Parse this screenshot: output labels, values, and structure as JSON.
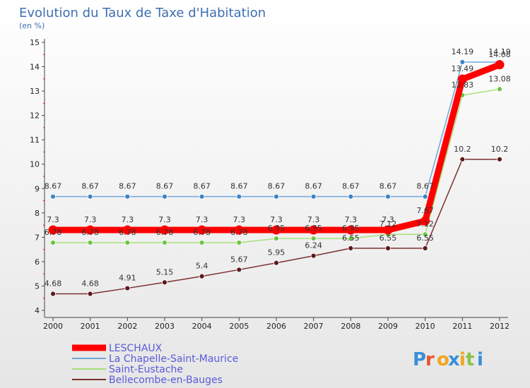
{
  "chart_data": {
    "type": "line",
    "title": "Evolution du Taux de Taxe d'Habitation",
    "subtitle": "(en %)",
    "x": [
      "2000",
      "2001",
      "2002",
      "2003",
      "2004",
      "2005",
      "2006",
      "2007",
      "2008",
      "2009",
      "2010",
      "2011",
      "2012"
    ],
    "ylim": [
      4,
      15
    ],
    "yticks": [
      4,
      5,
      6,
      7,
      8,
      9,
      10,
      11,
      12,
      13,
      14,
      15
    ],
    "grid": false,
    "legend_position": "bottom-left",
    "series": [
      {
        "name": "LESCHAUX",
        "color": "#ff0000",
        "values": [
          7.3,
          7.3,
          7.3,
          7.3,
          7.3,
          7.3,
          7.3,
          7.3,
          7.3,
          7.3,
          7.67,
          13.49,
          14.08
        ],
        "labels": [
          "7.3",
          "7.3",
          "7.3",
          "7.3",
          "7.3",
          "7.3",
          "7.3",
          "7.3",
          "7.3",
          "7.3",
          "7.67",
          "13.49",
          "14.08"
        ]
      },
      {
        "name": "La Chapelle-Saint-Maurice",
        "color": "#6fa8dc",
        "marker_color": "#3d85c6",
        "values": [
          8.67,
          8.67,
          8.67,
          8.67,
          8.67,
          8.67,
          8.67,
          8.67,
          8.67,
          8.67,
          8.67,
          14.19,
          14.19
        ],
        "labels": [
          "8.67",
          "8.67",
          "8.67",
          "8.67",
          "8.67",
          "8.67",
          "8.67",
          "8.67",
          "8.67",
          "8.67",
          "8.67",
          "14.19",
          "14.19"
        ]
      },
      {
        "name": "Saint-Eustache",
        "color": "#a8e07a",
        "marker_color": "#6cc644",
        "values": [
          6.78,
          6.78,
          6.78,
          6.78,
          6.78,
          6.78,
          6.95,
          6.95,
          6.95,
          7.12,
          7.12,
          12.83,
          13.08
        ],
        "labels": [
          "6.78",
          "6.78",
          "6.78",
          "6.78",
          "6.78",
          "6.78",
          "6.95",
          "6.95",
          "6.95",
          "7.12",
          "7.12",
          "12.83",
          "13.08"
        ]
      },
      {
        "name": "Bellecombe-en-Bauges",
        "color": "#7b2f2f",
        "marker_color": "#5c1a1a",
        "values": [
          4.68,
          4.68,
          4.91,
          5.15,
          5.4,
          5.67,
          5.95,
          6.24,
          6.55,
          6.55,
          6.55,
          10.2,
          10.2
        ],
        "labels": [
          "4.68",
          "4.68",
          "4.91",
          "5.15",
          "5.4",
          "5.67",
          "5.95",
          "6.24",
          "6.55",
          "6.55",
          "6.55",
          "10.2",
          "10.2"
        ]
      }
    ]
  },
  "logo": {
    "text": "Proxiti"
  }
}
